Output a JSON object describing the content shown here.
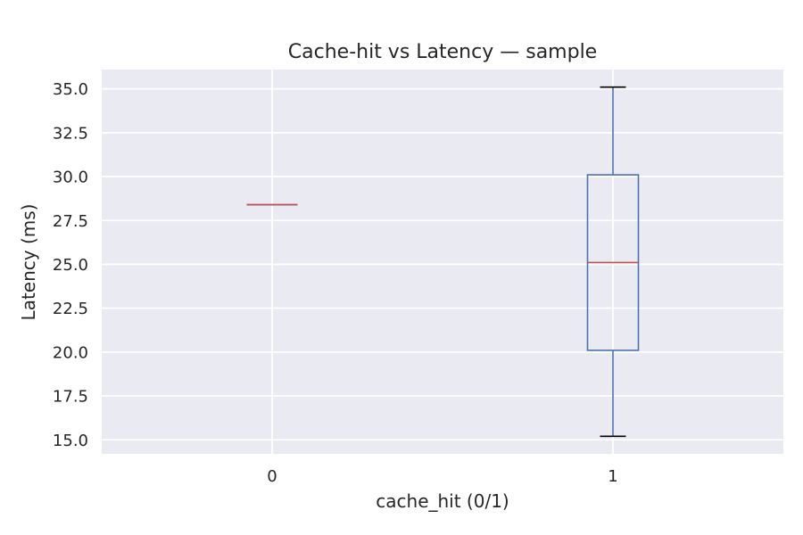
{
  "chart_data": {
    "type": "box",
    "title": "Cache-hit vs Latency — sample",
    "xlabel": "cache_hit (0/1)",
    "ylabel": "Latency (ms)",
    "categories": [
      "0",
      "1"
    ],
    "boxes": [
      {
        "category": "0",
        "whisker_low": 28.4,
        "q1": 28.4,
        "median": 28.4,
        "q3": 28.4,
        "whisker_high": 28.4
      },
      {
        "category": "1",
        "whisker_low": 15.2,
        "q1": 20.1,
        "median": 25.1,
        "q3": 30.1,
        "whisker_high": 35.1
      }
    ],
    "yticks": [
      "15.0",
      "17.5",
      "20.0",
      "22.5",
      "25.0",
      "27.5",
      "30.0",
      "32.5",
      "35.0"
    ],
    "ylim": [
      14.2,
      36.1
    ],
    "grid": true,
    "colors": {
      "background": "#EAEAF2",
      "grid": "#FFFFFF",
      "box": "#4C72B0",
      "median": "#C44E52",
      "cap": "#000000",
      "text": "#262626"
    }
  }
}
